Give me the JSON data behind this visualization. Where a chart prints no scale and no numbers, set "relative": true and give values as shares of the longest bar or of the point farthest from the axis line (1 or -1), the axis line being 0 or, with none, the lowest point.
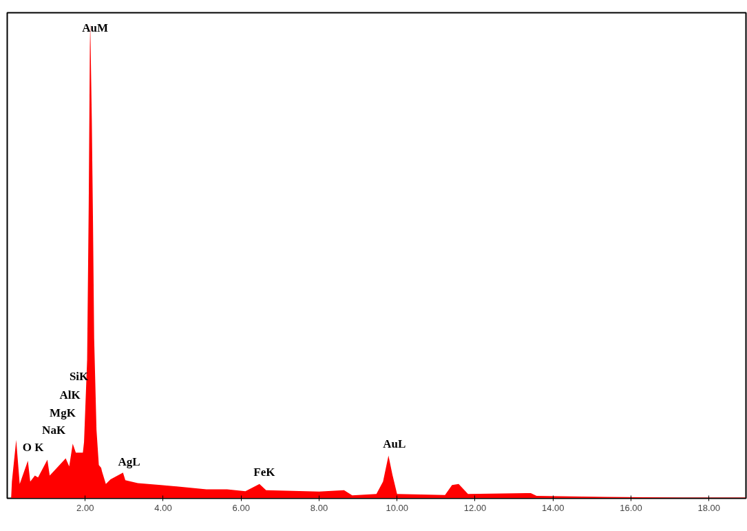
{
  "chart_data": {
    "type": "area",
    "relative": true,
    "color": "#ff0000",
    "x": [
      0.1,
      0.12,
      0.23,
      0.32,
      0.53,
      0.59,
      0.71,
      0.79,
      1.03,
      1.09,
      1.23,
      1.5,
      1.59,
      1.68,
      1.76,
      1.94,
      1.97,
      2.05,
      2.09,
      2.12,
      2.13,
      2.17,
      2.2,
      2.23,
      2.29,
      2.35,
      2.41,
      2.43,
      2.53,
      2.65,
      2.97,
      3.03,
      3.35,
      3.94,
      5.11,
      5.64,
      6.11,
      6.47,
      6.64,
      8.0,
      8.64,
      8.85,
      9.47,
      9.64,
      9.78,
      9.88,
      10.0,
      11.23,
      11.41,
      11.58,
      11.82,
      13.43,
      13.58,
      15.34,
      17.34,
      18.95
    ],
    "values": [
      0,
      0.035,
      0.123,
      0.03,
      0.079,
      0.035,
      0.048,
      0.044,
      0.081,
      0.048,
      0.06,
      0.084,
      0.067,
      0.115,
      0.096,
      0.096,
      0.118,
      0.292,
      0.616,
      0.95,
      1.0,
      0.794,
      0.583,
      0.336,
      0.144,
      0.07,
      0.064,
      0.057,
      0.03,
      0.04,
      0.054,
      0.038,
      0.032,
      0.028,
      0.019,
      0.019,
      0.015,
      0.03,
      0.017,
      0.014,
      0.017,
      0.006,
      0.009,
      0.035,
      0.09,
      0.05,
      0.009,
      0.007,
      0.028,
      0.03,
      0.009,
      0.011,
      0.005,
      0.003,
      0.0015,
      0.0015
    ],
    "xlim": [
      0,
      18.95
    ],
    "xticks": [
      {
        "value": 2,
        "label": "2.00"
      },
      {
        "value": 4,
        "label": "4.00"
      },
      {
        "value": 6,
        "label": "6.00"
      },
      {
        "value": 8,
        "label": "8.00"
      },
      {
        "value": 10,
        "label": "10.00"
      },
      {
        "value": 12,
        "label": "12.00"
      },
      {
        "value": 14,
        "label": "14.00"
      },
      {
        "value": 16,
        "label": "16.00"
      },
      {
        "value": 18,
        "label": "18.00"
      }
    ],
    "grid": false,
    "annotations": [
      "AuM",
      "SiK",
      "AlK",
      "MgK",
      "NaK",
      "O K",
      "AgL",
      "FeK",
      "AuL"
    ]
  }
}
